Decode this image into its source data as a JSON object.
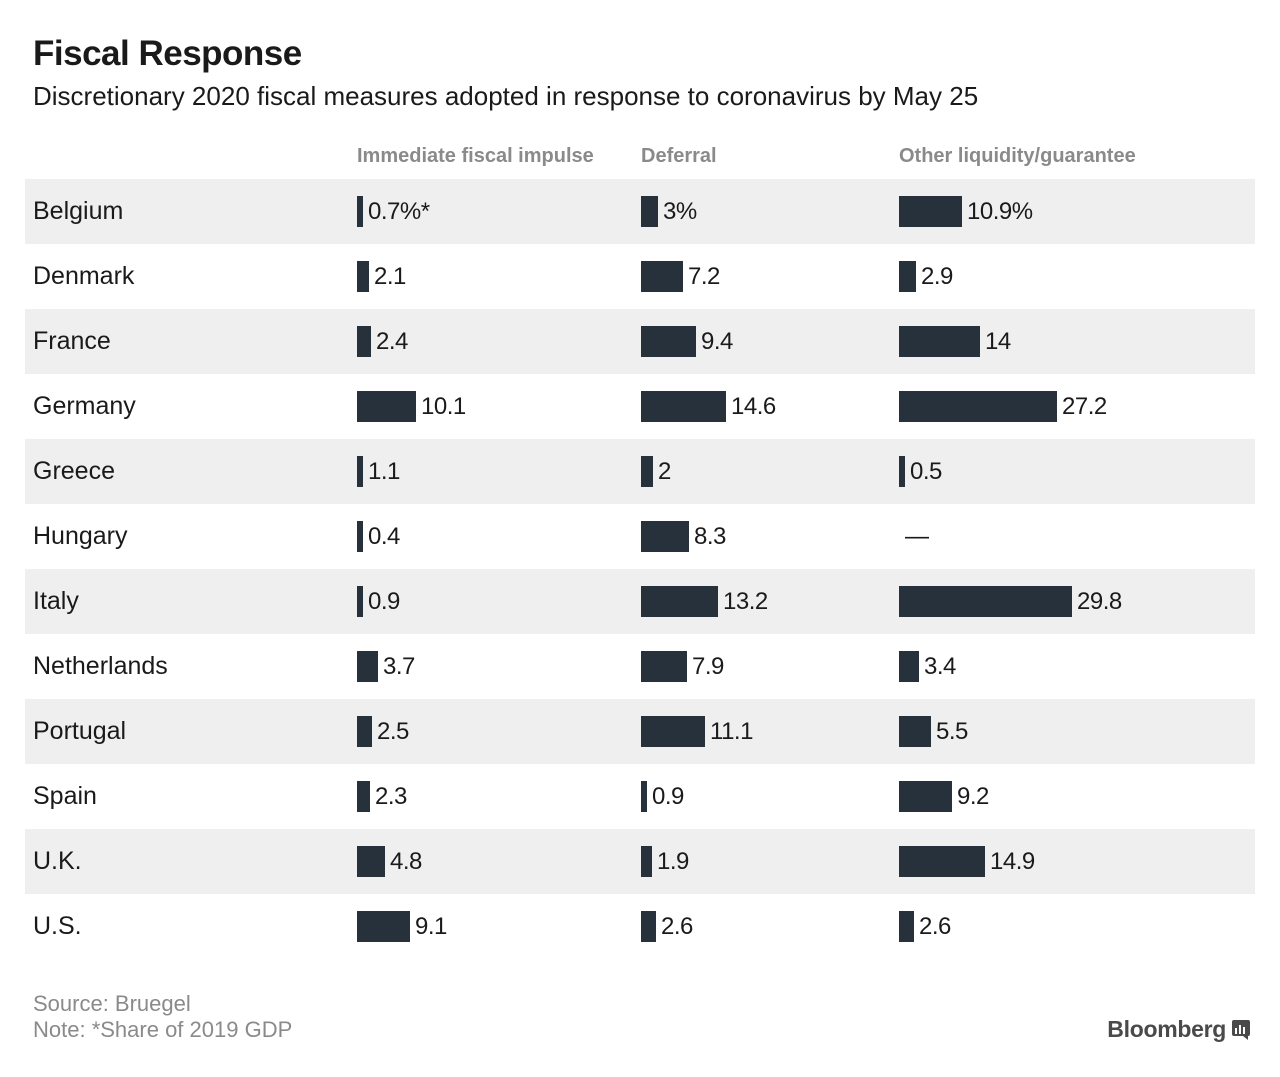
{
  "header": {
    "title": "Fiscal Response",
    "subtitle": "Discretionary 2020 fiscal measures adopted in response to coronavirus by May 25"
  },
  "footer": {
    "source": "Source: Bruegel",
    "note": "Note: *Share of 2019 GDP",
    "brand": "Bloomberg",
    "brand_icon": "bloomberg-terminal-icon"
  },
  "colors": {
    "bar": "#27313b",
    "row_shade": "#efefef",
    "muted_text": "#8a8a8a"
  },
  "chart_data": {
    "type": "table",
    "unit": "% of 2019 GDP",
    "columns": [
      {
        "key": "immediate",
        "label": "Immediate fiscal impulse"
      },
      {
        "key": "deferral",
        "label": "Deferral"
      },
      {
        "key": "other",
        "label": "Other liquidity/guarantee"
      }
    ],
    "rows": [
      {
        "country": "Belgium",
        "values": [
          0.7,
          3,
          10.9
        ],
        "labels": [
          "0.7%*",
          "3%",
          "10.9%"
        ]
      },
      {
        "country": "Denmark",
        "values": [
          2.1,
          7.2,
          2.9
        ],
        "labels": [
          "2.1",
          "7.2",
          "2.9"
        ]
      },
      {
        "country": "France",
        "values": [
          2.4,
          9.4,
          14
        ],
        "labels": [
          "2.4",
          "9.4",
          "14"
        ]
      },
      {
        "country": "Germany",
        "values": [
          10.1,
          14.6,
          27.2
        ],
        "labels": [
          "10.1",
          "14.6",
          "27.2"
        ]
      },
      {
        "country": "Greece",
        "values": [
          1.1,
          2,
          0.5
        ],
        "labels": [
          "1.1",
          "2",
          "0.5"
        ]
      },
      {
        "country": "Hungary",
        "values": [
          0.4,
          8.3,
          null
        ],
        "labels": [
          "0.4",
          "8.3",
          "—"
        ]
      },
      {
        "country": "Italy",
        "values": [
          0.9,
          13.2,
          29.8
        ],
        "labels": [
          "0.9",
          "13.2",
          "29.8"
        ]
      },
      {
        "country": "Netherlands",
        "values": [
          3.7,
          7.9,
          3.4
        ],
        "labels": [
          "3.7",
          "7.9",
          "3.4"
        ]
      },
      {
        "country": "Portugal",
        "values": [
          2.5,
          11.1,
          5.5
        ],
        "labels": [
          "2.5",
          "11.1",
          "5.5"
        ]
      },
      {
        "country": "Spain",
        "values": [
          2.3,
          0.9,
          9.2
        ],
        "labels": [
          "2.3",
          "0.9",
          "9.2"
        ]
      },
      {
        "country": "U.K.",
        "values": [
          4.8,
          1.9,
          14.9
        ],
        "labels": [
          "4.8",
          "1.9",
          "14.9"
        ]
      },
      {
        "country": "U.S.",
        "values": [
          9.1,
          2.6,
          2.6
        ],
        "labels": [
          "9.1",
          "2.6",
          "2.6"
        ]
      }
    ]
  }
}
